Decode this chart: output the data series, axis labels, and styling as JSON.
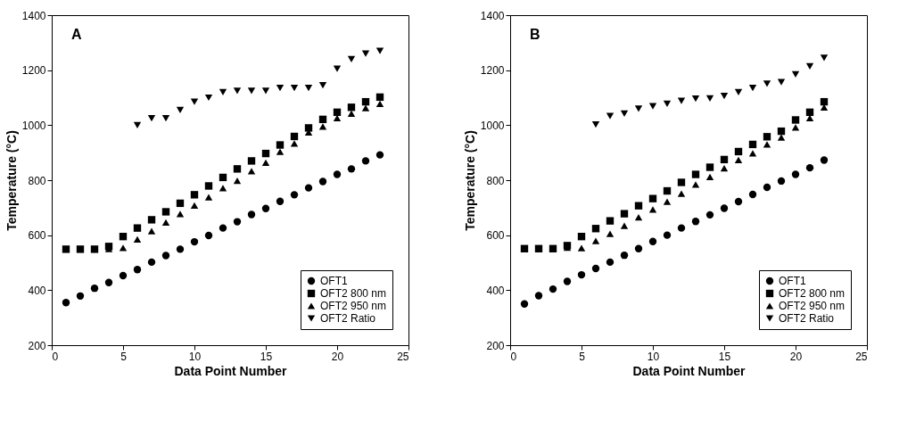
{
  "chart_data": [
    {
      "type": "scatter",
      "annotations": [
        "A"
      ],
      "xlabel": "Data Point Number",
      "ylabel": "Temperature (°C)",
      "xlim": [
        0,
        25
      ],
      "xticks": [
        0,
        5,
        10,
        15,
        20,
        25
      ],
      "ylim": [
        200,
        1400
      ],
      "yticks": [
        200,
        400,
        600,
        800,
        1000,
        1200,
        1400
      ],
      "grid": false,
      "legend": "bottom right",
      "x": [
        1,
        2,
        3,
        4,
        5,
        6,
        7,
        8,
        9,
        10,
        11,
        12,
        13,
        14,
        15,
        16,
        17,
        18,
        19,
        20,
        21,
        22,
        23
      ],
      "series": [
        {
          "name": "OFT1",
          "color": "#000000",
          "marker": "circle",
          "values": [
            355,
            379,
            407,
            428,
            453,
            475,
            502,
            526,
            549,
            576,
            599,
            626,
            649,
            675,
            697,
            723,
            747,
            772,
            795,
            821,
            841,
            870,
            892
          ]
        },
        {
          "name": "OFT2 800 nm",
          "color": "#000000",
          "marker": "square",
          "values": [
            549,
            549,
            549,
            559,
            595,
            626,
            656,
            685,
            716,
            747,
            779,
            810,
            841,
            870,
            897,
            928,
            959,
            990,
            1021,
            1047,
            1065,
            1085,
            1102
          ]
        },
        {
          "name": "OFT2 950 nm",
          "color": "#000000",
          "marker": "triangle",
          "values": [
            null,
            null,
            null,
            550,
            554,
            585,
            615,
            646,
            677,
            708,
            738,
            771,
            798,
            833,
            864,
            903,
            933,
            974,
            995,
            1026,
            1042,
            1062,
            1078
          ]
        },
        {
          "name": "OFT2 Ratio",
          "color": "#000000",
          "marker": "triangle-down",
          "values": [
            null,
            null,
            null,
            null,
            null,
            1000,
            1025,
            1025,
            1055,
            1085,
            1100,
            1120,
            1125,
            1125,
            1125,
            1135,
            1135,
            1135,
            1145,
            1205,
            1240,
            1260,
            1270
          ]
        }
      ]
    },
    {
      "type": "scatter",
      "annotations": [
        "B"
      ],
      "xlabel": "Data Point Number",
      "ylabel": "Temperature (°C)",
      "xlim": [
        0,
        25
      ],
      "xticks": [
        0,
        5,
        10,
        15,
        20,
        25
      ],
      "ylim": [
        200,
        1400
      ],
      "yticks": [
        200,
        400,
        600,
        800,
        1000,
        1200,
        1400
      ],
      "grid": false,
      "legend": "bottom right",
      "x": [
        1,
        2,
        3,
        4,
        5,
        6,
        7,
        8,
        9,
        10,
        11,
        12,
        13,
        14,
        15,
        16,
        17,
        18,
        19,
        20,
        21,
        22
      ],
      "series": [
        {
          "name": "OFT1",
          "color": "#000000",
          "marker": "circle",
          "values": [
            350,
            380,
            404,
            432,
            456,
            479,
            502,
            527,
            551,
            577,
            600,
            626,
            650,
            674,
            698,
            722,
            748,
            774,
            797,
            821,
            845,
            873
          ]
        },
        {
          "name": "OFT2 800 nm",
          "color": "#000000",
          "marker": "square",
          "values": [
            551,
            551,
            551,
            562,
            595,
            624,
            652,
            678,
            707,
            733,
            761,
            792,
            821,
            847,
            875,
            904,
            930,
            958,
            978,
            1019,
            1047,
            1085
          ]
        },
        {
          "name": "OFT2 950 nm",
          "color": "#000000",
          "marker": "triangle",
          "values": [
            551,
            551,
            551,
            555,
            553,
            579,
            605,
            634,
            665,
            693,
            722,
            751,
            784,
            812,
            843,
            873,
            898,
            930,
            955,
            992,
            1026,
            1065
          ]
        },
        {
          "name": "OFT2 Ratio",
          "color": "#000000",
          "marker": "triangle-down",
          "values": [
            null,
            null,
            null,
            null,
            null,
            1002,
            1033,
            1042,
            1060,
            1069,
            1078,
            1088,
            1096,
            1097,
            1106,
            1120,
            1135,
            1151,
            1156,
            1185,
            1214,
            1245
          ]
        }
      ]
    }
  ]
}
